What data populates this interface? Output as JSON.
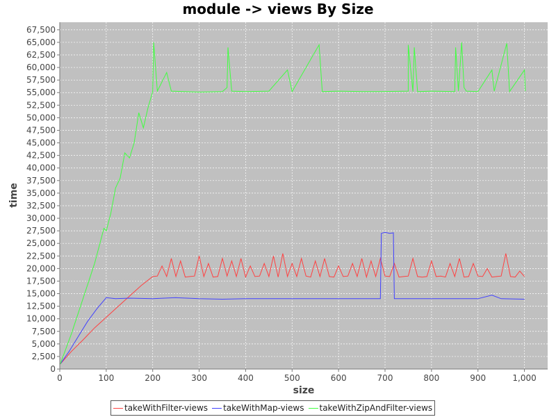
{
  "chart_data": {
    "type": "line",
    "title": "module -> views By Size",
    "xlabel": "size",
    "ylabel": "time",
    "xlim": [
      0,
      1050
    ],
    "ylim": [
      0,
      69000
    ],
    "x_ticks": [
      0,
      100,
      200,
      300,
      400,
      500,
      600,
      700,
      800,
      900,
      1000
    ],
    "x_tick_labels": [
      "0",
      "100",
      "200",
      "300",
      "400",
      "500",
      "600",
      "700",
      "800",
      "900",
      "1,000"
    ],
    "y_ticks": [
      0,
      2500,
      5000,
      7500,
      10000,
      12500,
      15000,
      17500,
      20000,
      22500,
      25000,
      27500,
      30000,
      32500,
      35000,
      37500,
      40000,
      42500,
      45000,
      47500,
      50000,
      52500,
      55000,
      57500,
      60000,
      62500,
      65000,
      67500
    ],
    "y_tick_labels": [
      "0",
      "2,500",
      "5,000",
      "7,500",
      "10,000",
      "12,500",
      "15,000",
      "17,500",
      "20,000",
      "22,500",
      "25,000",
      "27,500",
      "30,000",
      "32,500",
      "35,000",
      "37,500",
      "40,000",
      "42,500",
      "45,000",
      "47,500",
      "50,000",
      "52,500",
      "55,000",
      "57,500",
      "60,000",
      "62,500",
      "65,000",
      "67,500"
    ],
    "grid": true,
    "legend_position": "bottom",
    "background": "#c0c0c0",
    "series": [
      {
        "name": "takeWithFilter-views",
        "color": "#ff4040",
        "points": [
          [
            1,
            1000
          ],
          [
            25,
            3500
          ],
          [
            50,
            5800
          ],
          [
            75,
            8200
          ],
          [
            100,
            10300
          ],
          [
            125,
            12400
          ],
          [
            150,
            14500
          ],
          [
            175,
            16600
          ],
          [
            200,
            18400
          ],
          [
            210,
            18500
          ],
          [
            220,
            20500
          ],
          [
            230,
            18400
          ],
          [
            240,
            22000
          ],
          [
            250,
            18400
          ],
          [
            260,
            21500
          ],
          [
            270,
            18300
          ],
          [
            280,
            18400
          ],
          [
            290,
            18500
          ],
          [
            300,
            22500
          ],
          [
            310,
            18400
          ],
          [
            320,
            21000
          ],
          [
            330,
            18300
          ],
          [
            340,
            18400
          ],
          [
            350,
            22000
          ],
          [
            360,
            18500
          ],
          [
            370,
            21500
          ],
          [
            380,
            18400
          ],
          [
            390,
            22000
          ],
          [
            400,
            18300
          ],
          [
            410,
            20500
          ],
          [
            420,
            18400
          ],
          [
            430,
            18500
          ],
          [
            440,
            21000
          ],
          [
            450,
            18400
          ],
          [
            460,
            22500
          ],
          [
            470,
            18300
          ],
          [
            480,
            23000
          ],
          [
            490,
            18400
          ],
          [
            500,
            21000
          ],
          [
            510,
            18400
          ],
          [
            520,
            22000
          ],
          [
            530,
            18500
          ],
          [
            540,
            18300
          ],
          [
            550,
            21500
          ],
          [
            560,
            18400
          ],
          [
            570,
            22000
          ],
          [
            580,
            18400
          ],
          [
            590,
            18300
          ],
          [
            600,
            20500
          ],
          [
            610,
            18400
          ],
          [
            620,
            18500
          ],
          [
            630,
            21000
          ],
          [
            640,
            18400
          ],
          [
            650,
            22000
          ],
          [
            660,
            18300
          ],
          [
            670,
            21500
          ],
          [
            680,
            18400
          ],
          [
            690,
            22000
          ],
          [
            700,
            18500
          ],
          [
            710,
            18400
          ],
          [
            720,
            21000
          ],
          [
            730,
            18300
          ],
          [
            740,
            18400
          ],
          [
            750,
            18500
          ],
          [
            760,
            22000
          ],
          [
            770,
            18400
          ],
          [
            780,
            18300
          ],
          [
            790,
            18400
          ],
          [
            800,
            21500
          ],
          [
            810,
            18400
          ],
          [
            820,
            18500
          ],
          [
            830,
            18300
          ],
          [
            840,
            21000
          ],
          [
            850,
            18400
          ],
          [
            860,
            22000
          ],
          [
            870,
            18300
          ],
          [
            880,
            18400
          ],
          [
            890,
            21000
          ],
          [
            900,
            18500
          ],
          [
            910,
            18400
          ],
          [
            920,
            20000
          ],
          [
            930,
            18300
          ],
          [
            940,
            18400
          ],
          [
            950,
            18500
          ],
          [
            960,
            23000
          ],
          [
            970,
            18400
          ],
          [
            980,
            18300
          ],
          [
            990,
            19500
          ],
          [
            1000,
            18400
          ]
        ]
      },
      {
        "name": "takeWithMap-views",
        "color": "#4040ff",
        "points": [
          [
            1,
            1000
          ],
          [
            20,
            3500
          ],
          [
            40,
            6500
          ],
          [
            60,
            9500
          ],
          [
            80,
            12000
          ],
          [
            100,
            14200
          ],
          [
            120,
            14000
          ],
          [
            150,
            14100
          ],
          [
            200,
            14000
          ],
          [
            250,
            14200
          ],
          [
            300,
            14000
          ],
          [
            350,
            13900
          ],
          [
            400,
            14000
          ],
          [
            450,
            14000
          ],
          [
            500,
            14000
          ],
          [
            550,
            14000
          ],
          [
            600,
            14000
          ],
          [
            650,
            14000
          ],
          [
            690,
            14000
          ],
          [
            692,
            27000
          ],
          [
            700,
            27200
          ],
          [
            710,
            27000
          ],
          [
            718,
            27100
          ],
          [
            720,
            14000
          ],
          [
            750,
            14000
          ],
          [
            800,
            14000
          ],
          [
            850,
            14000
          ],
          [
            900,
            14000
          ],
          [
            930,
            14700
          ],
          [
            950,
            14000
          ],
          [
            1000,
            13900
          ]
        ]
      },
      {
        "name": "takeWithZipAndFilter-views",
        "color": "#40ff40",
        "points": [
          [
            1,
            1000
          ],
          [
            25,
            7000
          ],
          [
            50,
            14000
          ],
          [
            75,
            21000
          ],
          [
            95,
            28000
          ],
          [
            100,
            27500
          ],
          [
            110,
            31000
          ],
          [
            120,
            36000
          ],
          [
            130,
            38000
          ],
          [
            140,
            43000
          ],
          [
            150,
            42000
          ],
          [
            160,
            45000
          ],
          [
            170,
            51000
          ],
          [
            180,
            48000
          ],
          [
            190,
            52000
          ],
          [
            200,
            55200
          ],
          [
            202,
            65000
          ],
          [
            210,
            55300
          ],
          [
            230,
            59000
          ],
          [
            240,
            55300
          ],
          [
            300,
            55100
          ],
          [
            350,
            55200
          ],
          [
            360,
            56000
          ],
          [
            362,
            64000
          ],
          [
            370,
            55300
          ],
          [
            400,
            55200
          ],
          [
            450,
            55300
          ],
          [
            490,
            59500
          ],
          [
            500,
            55200
          ],
          [
            558,
            64500
          ],
          [
            565,
            55200
          ],
          [
            600,
            55300
          ],
          [
            650,
            55200
          ],
          [
            690,
            55200
          ],
          [
            750,
            55300
          ],
          [
            750,
            64500
          ],
          [
            760,
            55200
          ],
          [
            763,
            64000
          ],
          [
            770,
            55200
          ],
          [
            800,
            55300
          ],
          [
            850,
            55200
          ],
          [
            852,
            64000
          ],
          [
            858,
            55300
          ],
          [
            865,
            65000
          ],
          [
            870,
            56000
          ],
          [
            875,
            55300
          ],
          [
            900,
            55200
          ],
          [
            930,
            59500
          ],
          [
            935,
            55300
          ],
          [
            962,
            64800
          ],
          [
            968,
            55200
          ],
          [
            1000,
            59500
          ],
          [
            1002,
            55300
          ]
        ]
      }
    ]
  }
}
